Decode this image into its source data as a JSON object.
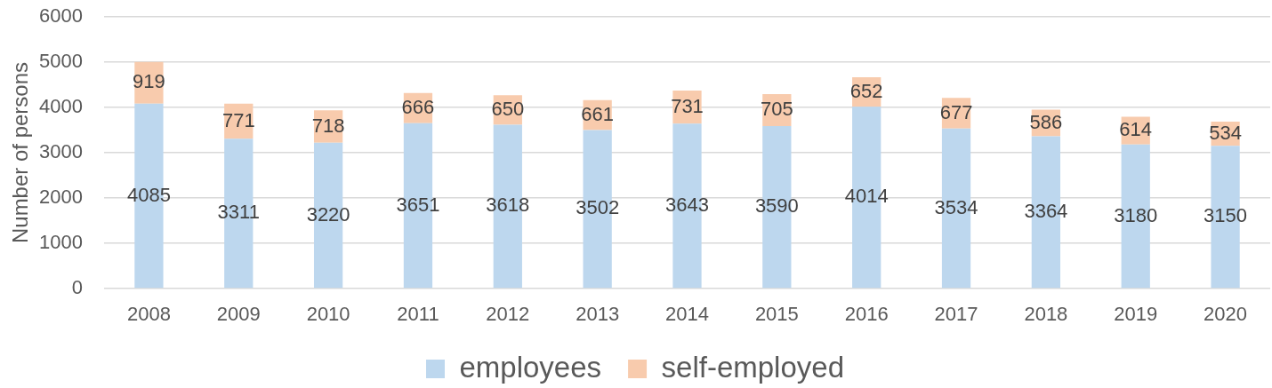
{
  "chart_data": {
    "type": "bar",
    "ylabel": "Number of persons",
    "categories": [
      "2008",
      "2009",
      "2010",
      "2011",
      "2012",
      "2013",
      "2014",
      "2015",
      "2016",
      "2017",
      "2018",
      "2019",
      "2020"
    ],
    "series": [
      {
        "name": "employees",
        "color": "#bdd7ee",
        "values": [
          4085,
          3311,
          3220,
          3651,
          3618,
          3502,
          3643,
          3590,
          4014,
          3534,
          3364,
          3180,
          3150
        ]
      },
      {
        "name": "self-employed",
        "color": "#f8cbad",
        "values": [
          919,
          771,
          718,
          666,
          650,
          661,
          731,
          705,
          652,
          677,
          586,
          614,
          534
        ]
      }
    ],
    "stacked": true,
    "ylim": [
      0,
      6000
    ],
    "yticks": [
      0,
      1000,
      2000,
      3000,
      4000,
      5000,
      6000
    ],
    "grid": "y",
    "legend": "bottom",
    "data_labels": true
  }
}
